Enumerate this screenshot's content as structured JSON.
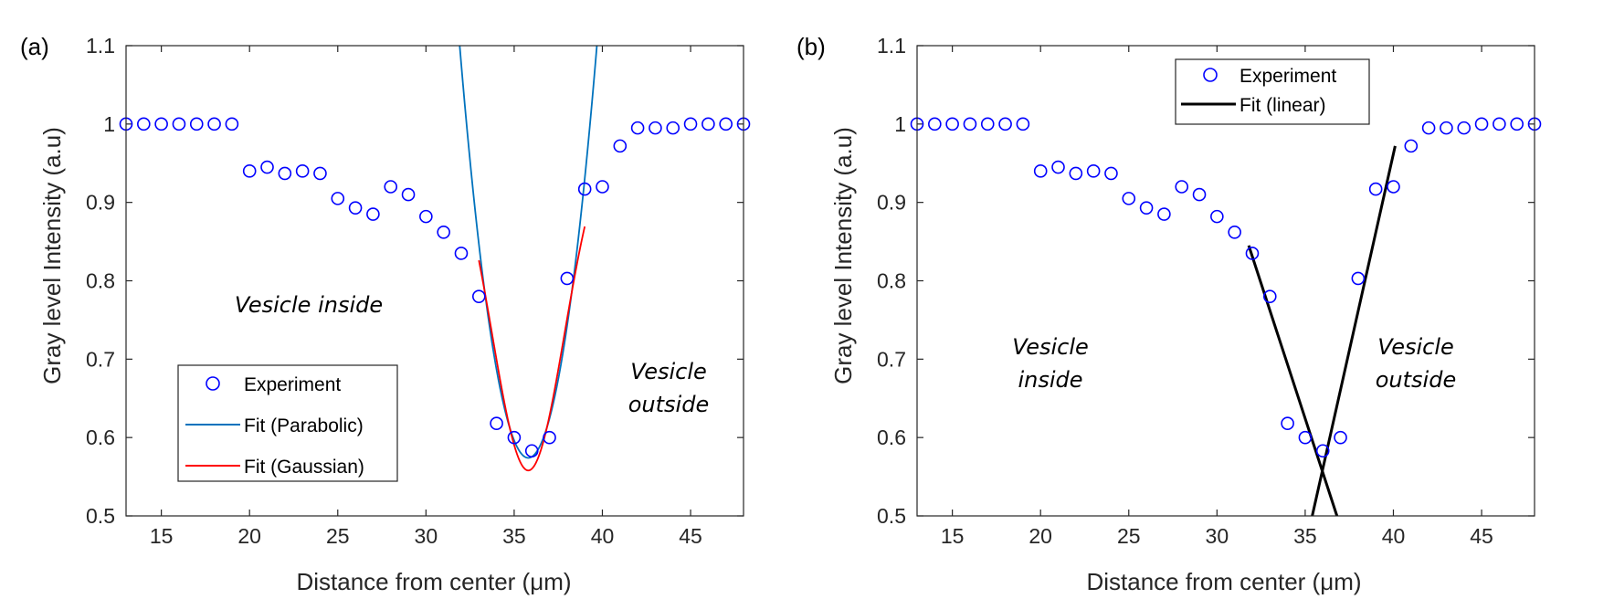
{
  "chart_data": [
    {
      "type": "scatter",
      "panel_label": "(a)",
      "xlabel": "Distance from center (μm)",
      "ylabel": "Gray level Intensity (a.u)",
      "xlim": [
        13,
        48
      ],
      "ylim": [
        0.5,
        1.1
      ],
      "xticks": [
        15,
        20,
        25,
        30,
        35,
        40,
        45
      ],
      "yticks": [
        0.5,
        0.6,
        0.7,
        0.8,
        0.9,
        1,
        1.1
      ],
      "ytick_labels": [
        "0.5",
        "0.6",
        "0.7",
        "0.8",
        "0.9",
        "1",
        "1.1"
      ],
      "series": [
        {
          "name": "Experiment",
          "kind": "markers",
          "color": "#0000ff",
          "x": [
            13,
            14,
            15,
            16,
            17,
            18,
            19,
            20,
            21,
            22,
            23,
            24,
            25,
            26,
            27,
            28,
            29,
            30,
            31,
            32,
            33,
            34,
            35,
            36,
            37,
            38,
            39,
            40,
            41,
            42,
            43,
            44,
            45,
            46,
            47,
            48
          ],
          "y": [
            1,
            1,
            1,
            1,
            1,
            1,
            1,
            0.94,
            0.945,
            0.937,
            0.94,
            0.937,
            0.905,
            0.893,
            0.885,
            0.92,
            0.91,
            0.882,
            0.862,
            0.835,
            0.78,
            0.618,
            0.6,
            0.583,
            0.6,
            0.803,
            0.917,
            0.92,
            0.972,
            0.995,
            0.995,
            0.995,
            1,
            1,
            1,
            1
          ]
        },
        {
          "name": "Fit (Parabolic)",
          "kind": "parabola",
          "color": "#0072bd",
          "x0": 35.8,
          "y0": 0.574,
          "a": 0.0348,
          "x_range": [
            30,
            42
          ]
        },
        {
          "name": "Fit (Gaussian)",
          "kind": "gaussian",
          "color": "#ff0000",
          "x0": 35.8,
          "base": 1.0,
          "depth": 0.442,
          "sigma": 2.05,
          "x_range": [
            33,
            39
          ]
        }
      ],
      "legend": {
        "position": "lower-left",
        "items": [
          "Experiment",
          "Fit (Parabolic)",
          "Fit (Gaussian)"
        ]
      },
      "annotations": [
        {
          "lines": [
            "Vesicle inside"
          ]
        },
        {
          "lines": [
            "Vesicle",
            "outside"
          ]
        }
      ]
    },
    {
      "type": "scatter",
      "panel_label": "(b)",
      "xlabel": "Distance from center (μm)",
      "ylabel": "Gray level Intensity (a.u)",
      "xlim": [
        13,
        48
      ],
      "ylim": [
        0.5,
        1.1
      ],
      "xticks": [
        15,
        20,
        25,
        30,
        35,
        40,
        45
      ],
      "yticks": [
        0.5,
        0.6,
        0.7,
        0.8,
        0.9,
        1,
        1.1
      ],
      "ytick_labels": [
        "0.5",
        "0.6",
        "0.7",
        "0.8",
        "0.9",
        "1",
        "1.1"
      ],
      "series": [
        {
          "name": "Experiment",
          "kind": "markers",
          "color": "#0000ff",
          "x": [
            13,
            14,
            15,
            16,
            17,
            18,
            19,
            20,
            21,
            22,
            23,
            24,
            25,
            26,
            27,
            28,
            29,
            30,
            31,
            32,
            33,
            34,
            35,
            36,
            37,
            38,
            39,
            40,
            41,
            42,
            43,
            44,
            45,
            46,
            47,
            48
          ],
          "y": [
            1,
            1,
            1,
            1,
            1,
            1,
            1,
            0.94,
            0.945,
            0.937,
            0.94,
            0.937,
            0.905,
            0.893,
            0.885,
            0.92,
            0.91,
            0.882,
            0.862,
            0.835,
            0.78,
            0.618,
            0.6,
            0.583,
            0.6,
            0.803,
            0.917,
            0.92,
            0.972,
            0.995,
            0.995,
            0.995,
            1,
            1,
            1,
            1
          ]
        },
        {
          "name": "Fit (linear)",
          "kind": "line",
          "color": "#000000",
          "segments": [
            {
              "x": [
                31.8,
                36.8
              ],
              "y": [
                0.845,
                0.5
              ]
            },
            {
              "x": [
                35.4,
                40.1
              ],
              "y": [
                0.5,
                0.972
              ]
            }
          ]
        }
      ],
      "legend": {
        "position": "top-center",
        "items": [
          "Experiment",
          "Fit (linear)"
        ]
      },
      "annotations": [
        {
          "lines": [
            "Vesicle",
            "inside"
          ]
        },
        {
          "lines": [
            "Vesicle",
            "outside"
          ]
        }
      ]
    }
  ]
}
